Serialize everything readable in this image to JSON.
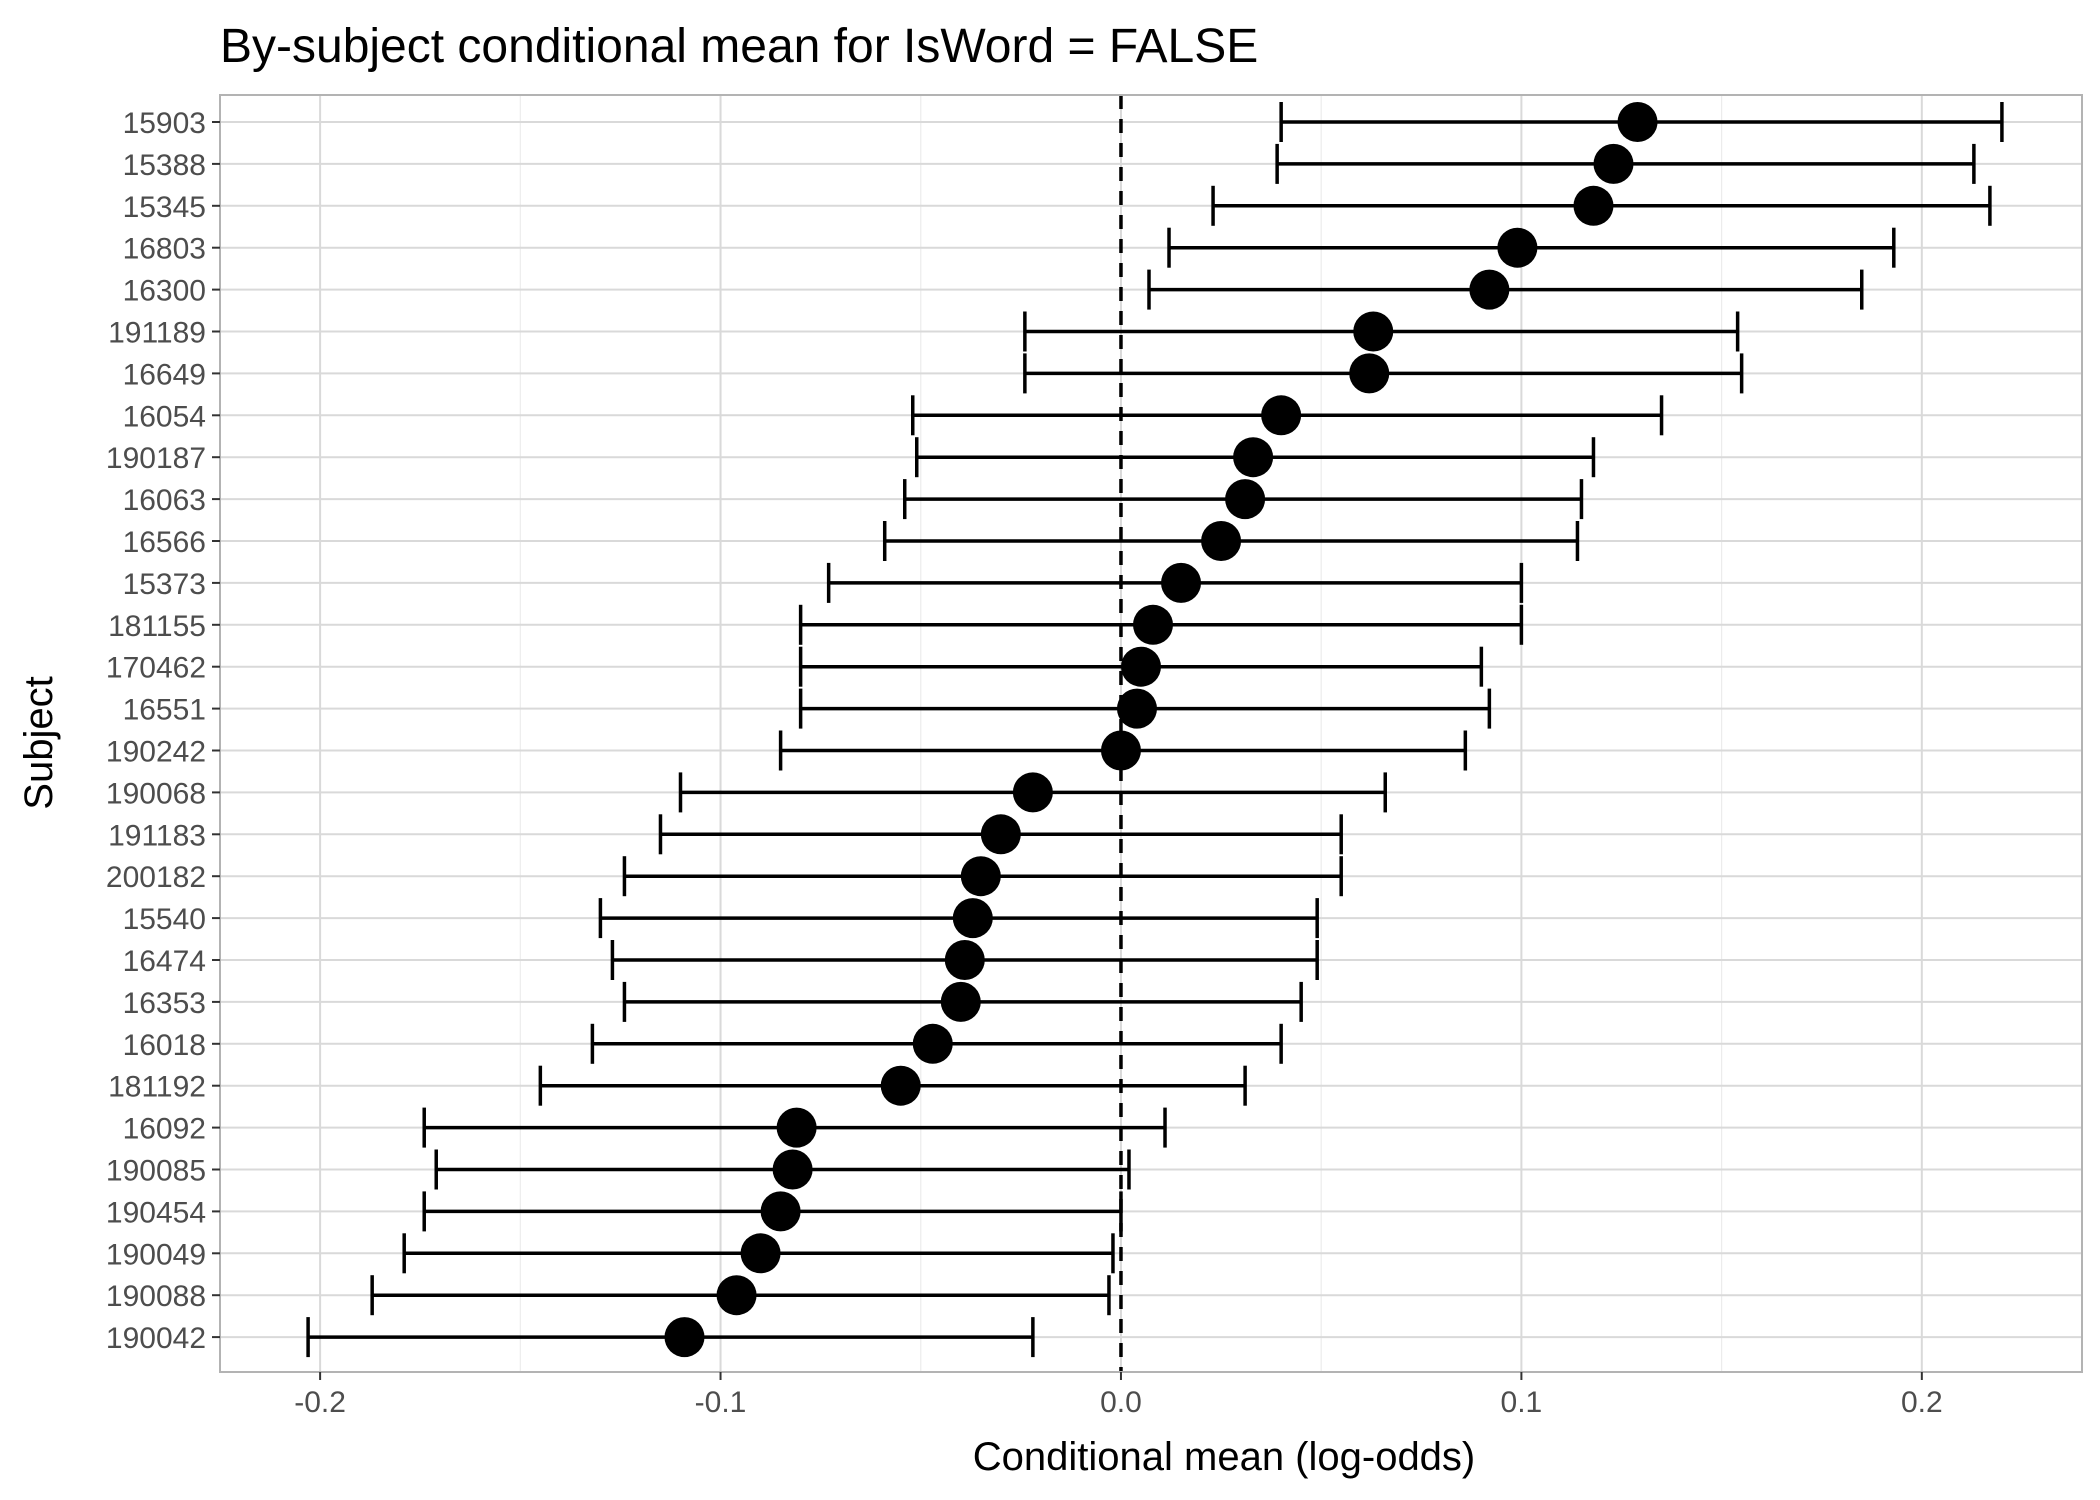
{
  "chart_data": {
    "type": "scatter",
    "title": "By-subject conditional mean for IsWord = FALSE",
    "xlabel": "Conditional mean (log-odds)",
    "ylabel": "Subject",
    "xlim": [
      -0.225,
      0.24
    ],
    "xticks": [
      -0.2,
      -0.1,
      0.0,
      0.1,
      0.2
    ],
    "xtick_labels": [
      "-0.2",
      "-0.1",
      "0.0",
      "0.1",
      "0.2"
    ],
    "grid": true,
    "reference_line": {
      "x": 0.0,
      "style": "dashed"
    },
    "points": [
      {
        "subject": "15903",
        "mean": 0.129,
        "lower": 0.04,
        "upper": 0.22
      },
      {
        "subject": "15388",
        "mean": 0.123,
        "lower": 0.039,
        "upper": 0.213
      },
      {
        "subject": "15345",
        "mean": 0.118,
        "lower": 0.023,
        "upper": 0.217
      },
      {
        "subject": "16803",
        "mean": 0.099,
        "lower": 0.012,
        "upper": 0.193
      },
      {
        "subject": "16300",
        "mean": 0.092,
        "lower": 0.007,
        "upper": 0.185
      },
      {
        "subject": "191189",
        "mean": 0.063,
        "lower": -0.024,
        "upper": 0.154
      },
      {
        "subject": "16649",
        "mean": 0.062,
        "lower": -0.024,
        "upper": 0.155
      },
      {
        "subject": "16054",
        "mean": 0.04,
        "lower": -0.052,
        "upper": 0.135
      },
      {
        "subject": "190187",
        "mean": 0.033,
        "lower": -0.051,
        "upper": 0.118
      },
      {
        "subject": "16063",
        "mean": 0.031,
        "lower": -0.054,
        "upper": 0.115
      },
      {
        "subject": "16566",
        "mean": 0.025,
        "lower": -0.059,
        "upper": 0.114
      },
      {
        "subject": "15373",
        "mean": 0.015,
        "lower": -0.073,
        "upper": 0.1
      },
      {
        "subject": "181155",
        "mean": 0.008,
        "lower": -0.08,
        "upper": 0.1
      },
      {
        "subject": "170462",
        "mean": 0.005,
        "lower": -0.08,
        "upper": 0.09
      },
      {
        "subject": "16551",
        "mean": 0.004,
        "lower": -0.08,
        "upper": 0.092
      },
      {
        "subject": "190242",
        "mean": 0.0,
        "lower": -0.085,
        "upper": 0.086
      },
      {
        "subject": "190068",
        "mean": -0.022,
        "lower": -0.11,
        "upper": 0.066
      },
      {
        "subject": "191183",
        "mean": -0.03,
        "lower": -0.115,
        "upper": 0.055
      },
      {
        "subject": "200182",
        "mean": -0.035,
        "lower": -0.124,
        "upper": 0.055
      },
      {
        "subject": "15540",
        "mean": -0.037,
        "lower": -0.13,
        "upper": 0.049
      },
      {
        "subject": "16474",
        "mean": -0.039,
        "lower": -0.127,
        "upper": 0.049
      },
      {
        "subject": "16353",
        "mean": -0.04,
        "lower": -0.124,
        "upper": 0.045
      },
      {
        "subject": "16018",
        "mean": -0.047,
        "lower": -0.132,
        "upper": 0.04
      },
      {
        "subject": "181192",
        "mean": -0.055,
        "lower": -0.145,
        "upper": 0.031
      },
      {
        "subject": "16092",
        "mean": -0.081,
        "lower": -0.174,
        "upper": 0.011
      },
      {
        "subject": "190085",
        "mean": -0.082,
        "lower": -0.171,
        "upper": 0.002
      },
      {
        "subject": "190454",
        "mean": -0.085,
        "lower": -0.174,
        "upper": 0.0
      },
      {
        "subject": "190049",
        "mean": -0.09,
        "lower": -0.179,
        "upper": -0.002
      },
      {
        "subject": "190088",
        "mean": -0.096,
        "lower": -0.187,
        "upper": -0.003
      },
      {
        "subject": "190042",
        "mean": -0.109,
        "lower": -0.203,
        "upper": -0.022
      }
    ]
  }
}
